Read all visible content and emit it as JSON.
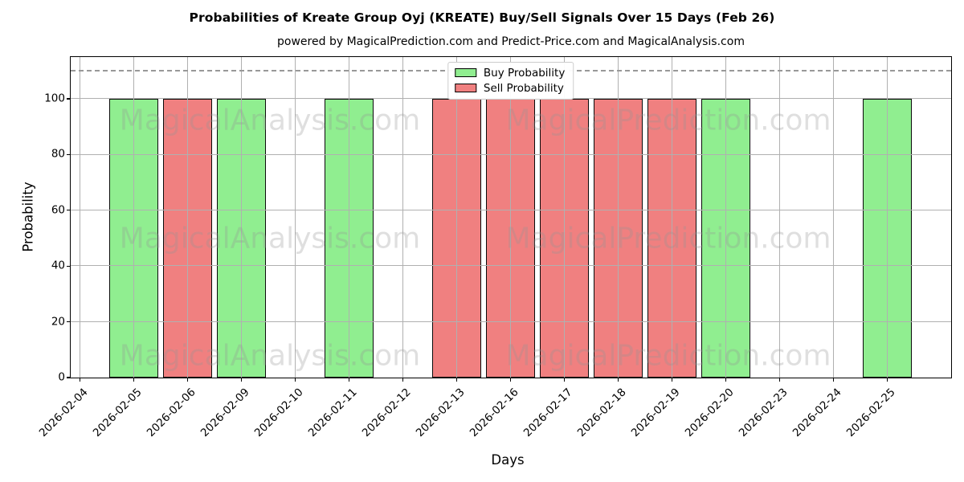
{
  "title": "Probabilities of Kreate Group Oyj (KREATE) Buy/Sell Signals Over 15 Days (Feb 26)",
  "subtitle": "powered by MagicalPrediction.com and Predict-Price.com and MagicalAnalysis.com",
  "watermarks": {
    "left_text": "MagicalAnalysis.com",
    "right_text": "MagicalPrediction.com"
  },
  "colors": {
    "buy": "#90ee90",
    "sell": "#f08080",
    "bar_edge": "#0a0a0a",
    "grid": "#b0b0b0",
    "dashed_line": "#999999",
    "watermark": "rgba(150,150,150,0.30)"
  },
  "chart_data": {
    "type": "bar",
    "title": "Probabilities of Kreate Group Oyj (KREATE) Buy/Sell Signals Over 15 Days (Feb 26)",
    "xlabel": "Days",
    "ylabel": "Probability",
    "categories": [
      "2026-02-04",
      "2026-02-05",
      "2026-02-06",
      "2026-02-09",
      "2026-02-10",
      "2026-02-11",
      "2026-02-12",
      "2026-02-13",
      "2026-02-16",
      "2026-02-17",
      "2026-02-18",
      "2026-02-19",
      "2026-02-20",
      "2026-02-23",
      "2026-02-24",
      "2026-02-25"
    ],
    "series": [
      {
        "name": "Buy Probability",
        "color": "#90ee90",
        "values": [
          0,
          100,
          0,
          100,
          0,
          100,
          0,
          0,
          0,
          0,
          0,
          0,
          100,
          0,
          0,
          100
        ]
      },
      {
        "name": "Sell Probability",
        "color": "#f08080",
        "values": [
          0,
          0,
          100,
          0,
          0,
          0,
          0,
          100,
          100,
          100,
          100,
          100,
          0,
          0,
          0,
          0
        ]
      }
    ],
    "ylim": [
      0,
      115
    ],
    "yticks": [
      0,
      20,
      40,
      60,
      80,
      100
    ],
    "dashed_reference_line_y": 110,
    "grid": true,
    "grid_above_bars": true,
    "legend_position": "top-center"
  }
}
